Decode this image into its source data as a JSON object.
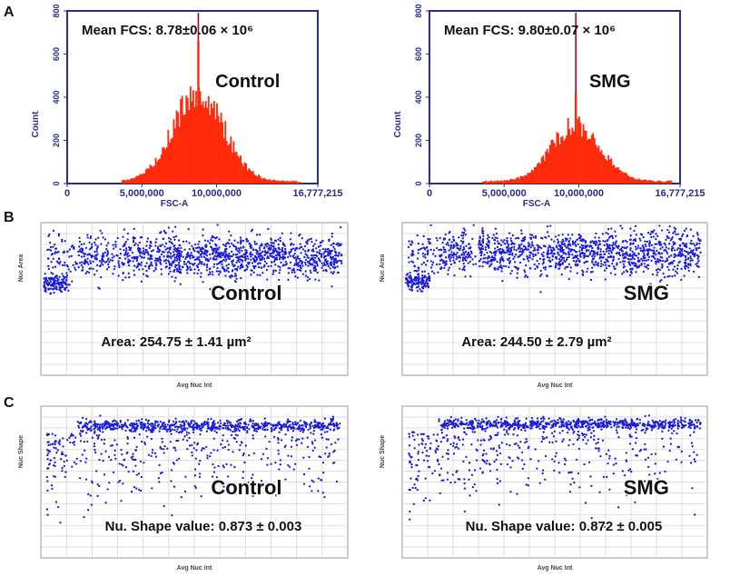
{
  "panels": {
    "a": "A",
    "b": "B",
    "c": "C"
  },
  "colors": {
    "histogram_fill": "#ff2a0a",
    "axis_blue": "#2b2b8a",
    "scatter_dot": "#1a1adc",
    "mean_line": "#b0001a"
  },
  "chart_data": [
    {
      "id": "A-left",
      "type": "bar",
      "panel": "A",
      "condition": "Control",
      "annotation": "Mean FCS: 8.78±0.06 × 10⁶",
      "xlabel": "FSC-A",
      "ylabel": "Count",
      "x_ticks": [
        "0",
        "5,000,000",
        "10,000,000",
        "16,777,215"
      ],
      "x_tick_values": [
        0,
        5000000,
        10000000,
        16777215
      ],
      "y_ticks": [
        "0",
        "200",
        "400",
        "600",
        "800"
      ],
      "xlim": [
        0,
        16777215
      ],
      "ylim": [
        0,
        800
      ],
      "mean_line_x": 8780000,
      "peak_count": 660,
      "mu": 8780000,
      "sigma": 1700000,
      "x_start": 3600000,
      "x_end": 15700000
    },
    {
      "id": "A-right",
      "type": "bar",
      "panel": "A",
      "condition": "SMG",
      "annotation": "Mean FCS: 9.80±0.07 × 10⁶",
      "xlabel": "FSC-A",
      "ylabel": "Count",
      "x_ticks": [
        "0",
        "5,000,000",
        "10,000,000",
        "16,777,215"
      ],
      "x_tick_values": [
        0,
        5000000,
        10000000,
        16777215
      ],
      "y_ticks": [
        "0",
        "200",
        "400",
        "600",
        "800"
      ],
      "xlim": [
        0,
        16777215
      ],
      "ylim": [
        0,
        800
      ],
      "mean_line_x": 9800000,
      "peak_count": 420,
      "mu": 9800000,
      "sigma": 1650000,
      "x_start": 3500000,
      "x_end": 16200000
    },
    {
      "id": "B-left",
      "type": "scatter",
      "panel": "B",
      "condition": "Control",
      "annotation": "Area: 254.75 ± 1.41 µm²",
      "xlabel": "Avg Nuc Int",
      "ylabel": "Nuc Area",
      "band_center": 0.78,
      "band_spread": 0.07,
      "cluster_small": true,
      "seed": 11
    },
    {
      "id": "B-right",
      "type": "scatter",
      "panel": "B",
      "condition": "SMG",
      "annotation": "Area: 244.50 ± 2.79 µm²",
      "xlabel": "Avg Nuc Int",
      "ylabel": "Nuc Area",
      "band_center": 0.8,
      "band_spread": 0.07,
      "cluster_small": true,
      "seed": 23
    },
    {
      "id": "C-left",
      "type": "scatter",
      "panel": "C",
      "condition": "Control",
      "annotation": "Nu. Shape value: 0.873 ± 0.003",
      "xlabel": "Avg Nuc Int",
      "ylabel": "Nuc Shape",
      "band_center": 0.87,
      "band_spread": 0.02,
      "cluster_small": false,
      "seed": 37
    },
    {
      "id": "C-right",
      "type": "scatter",
      "panel": "C",
      "condition": "SMG",
      "annotation": "Nu. Shape value: 0.872 ± 0.005",
      "xlabel": "Avg Nuc Int",
      "ylabel": "Nuc Shape",
      "band_center": 0.88,
      "band_spread": 0.02,
      "cluster_small": false,
      "seed": 53
    }
  ]
}
